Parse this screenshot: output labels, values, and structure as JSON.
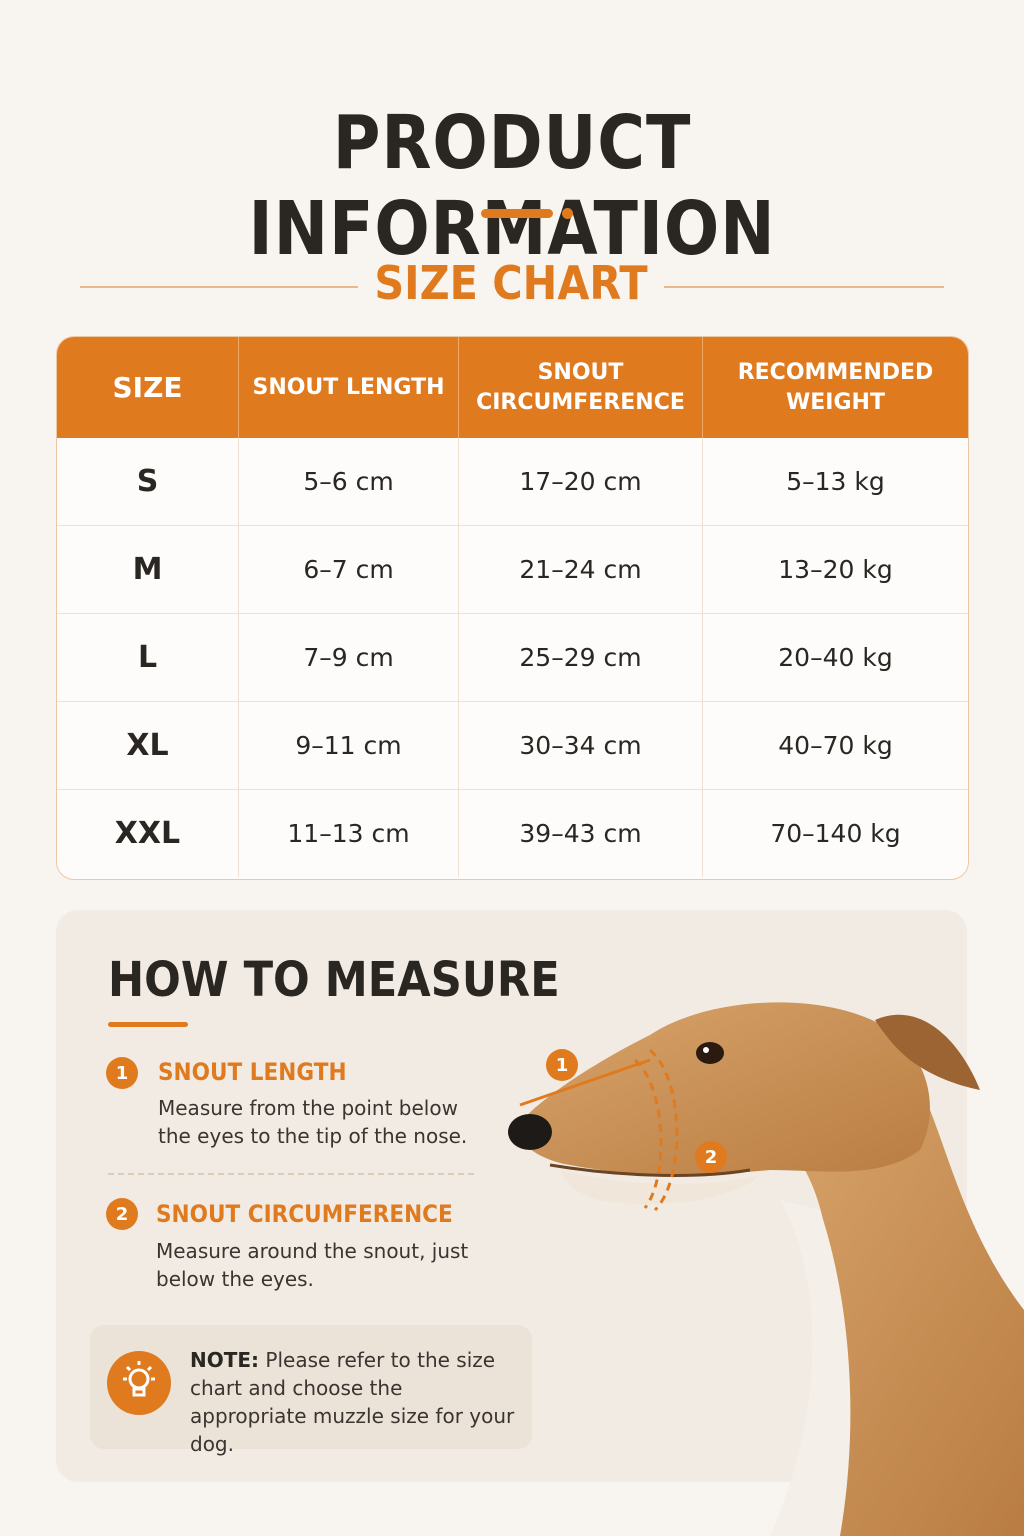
{
  "header": {
    "title": "PRODUCT INFORMATION",
    "subtitle": "SIZE CHART"
  },
  "colors": {
    "accent": "#e07a1f",
    "background": "#f8f5f1",
    "text": "#2a2622"
  },
  "size_table": {
    "headers": [
      "SIZE",
      "SNOUT LENGTH",
      "SNOUT\nCIRCUMFERENCE",
      "RECOMMENDED\nWEIGHT"
    ],
    "rows": [
      [
        "S",
        "5–6 cm",
        "17–20 cm",
        "5–13 kg"
      ],
      [
        "M",
        "6–7 cm",
        "21–24 cm",
        "13–20 kg"
      ],
      [
        "L",
        "7–9 cm",
        "25–29 cm",
        "20–40 kg"
      ],
      [
        "XL",
        "9–11 cm",
        "30–34 cm",
        "40–70 kg"
      ],
      [
        "XXL",
        "11–13 cm",
        "39–43 cm",
        "70–140 kg"
      ]
    ]
  },
  "measure": {
    "title": "HOW TO MEASURE",
    "steps": [
      {
        "number": "1",
        "title": "SNOUT LENGTH",
        "description": "Measure from the point below the eyes to the tip of the nose."
      },
      {
        "number": "2",
        "title": "SNOUT CIRCUMFERENCE",
        "description": "Measure around the snout, just below the eyes."
      }
    ],
    "note_label": "NOTE:",
    "note_text": "Please refer to the size chart and choose the appropriate muzzle size for your dog.",
    "note_icon": "lightbulb-icon",
    "diagram_markers": [
      "1",
      "2"
    ]
  }
}
